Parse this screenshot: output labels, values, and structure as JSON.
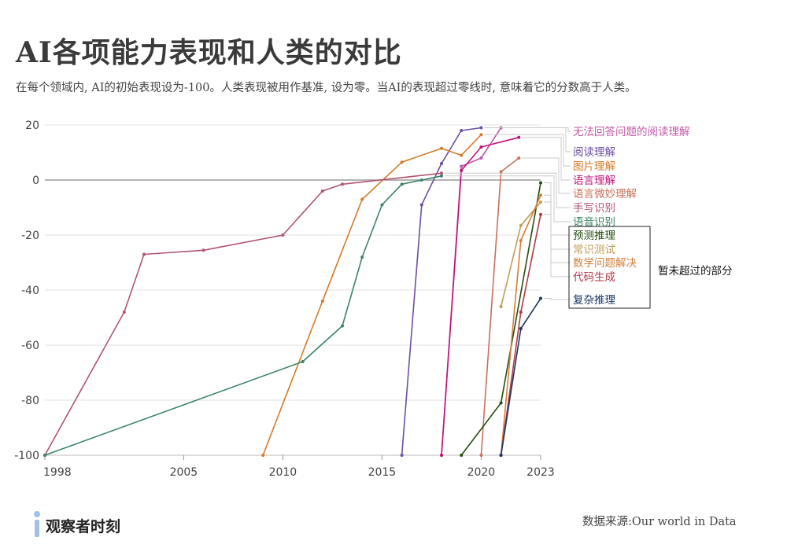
{
  "title": "AI各项能力表现和人类的对比",
  "subtitle": "在每个领域内, AI的初始表现设为-100。人类表现被用作基准, 设为零。当AI的表现超过零线时, 意味着它的分数高于人类。",
  "source": "数据来源:Our world in Data",
  "brand": "观察者时刻",
  "chart_data": {
    "type": "line",
    "title": "AI各项能力表现和人类的对比",
    "xlim": [
      1998,
      2023
    ],
    "ylim": [
      -100,
      20
    ],
    "x_ticks": [
      {
        "value": 1998,
        "label": "1998"
      },
      {
        "value": 2005,
        "label": "2005"
      },
      {
        "value": 2010,
        "label": "2010"
      },
      {
        "value": 2015,
        "label": "2015"
      },
      {
        "value": 2020,
        "label": "2020"
      },
      {
        "value": 2023,
        "label": "2023"
      }
    ],
    "y_ticks": [
      20,
      0,
      -20,
      -40,
      -60,
      -80,
      -100
    ],
    "grid": "horizontal",
    "box_label": "暂未超过的部分",
    "series": [
      {
        "name": "无法回答问题的阅读理解",
        "color": "#c059a8",
        "x": [
          2018,
          2019,
          2020,
          2021
        ],
        "y": [
          -100,
          5,
          8,
          19
        ]
      },
      {
        "name": "阅读理解",
        "color": "#6b4fa3",
        "x": [
          2016,
          2017,
          2018,
          2019,
          2020
        ],
        "y": [
          -100,
          -9,
          6,
          18,
          19
        ]
      },
      {
        "name": "图片理解",
        "color": "#d47a28",
        "x": [
          2009,
          2012,
          2014,
          2016,
          2018,
          2019,
          2020
        ],
        "y": [
          -100,
          -44,
          -7,
          6.5,
          11.5,
          9,
          16.5
        ]
      },
      {
        "name": "语言理解",
        "color": "#c2127a",
        "x": [
          2018,
          2019,
          2020,
          2021.9
        ],
        "y": [
          -100,
          3.5,
          12,
          15.5
        ]
      },
      {
        "name": "语言微妙理解",
        "color": "#c8705a",
        "x": [
          2020,
          2021,
          2021.9
        ],
        "y": [
          -100,
          3,
          8
        ]
      },
      {
        "name": "手写识别",
        "color": "#b25470",
        "x": [
          1998,
          2002,
          2003,
          2006,
          2010,
          2012,
          2013,
          2018
        ],
        "y": [
          -100,
          -48,
          -27,
          -25.5,
          -20,
          -4,
          -1.5,
          2.5
        ]
      },
      {
        "name": "语音识别",
        "color": "#3b8466",
        "x": [
          1998,
          2011,
          2013,
          2014,
          2015,
          2016,
          2017,
          2018
        ],
        "y": [
          -100,
          -66,
          -53,
          -28,
          -9,
          -1.5,
          0,
          1.5
        ]
      },
      {
        "name": "预测推理",
        "color": "#254d10",
        "x": [
          2019,
          2021,
          2023
        ],
        "y": [
          -100,
          -81,
          -1
        ]
      },
      {
        "name": "常识测试",
        "color": "#bf9e55",
        "x": [
          2021,
          2022,
          2023
        ],
        "y": [
          -46,
          -16.5,
          -8
        ]
      },
      {
        "name": "数学问题解决",
        "color": "#d67f3a",
        "x": [
          2021,
          2022,
          2023
        ],
        "y": [
          -100,
          -22,
          -5.5
        ]
      },
      {
        "name": "代码生成",
        "color": "#b03a48",
        "x": [
          2021,
          2022,
          2023
        ],
        "y": [
          -100,
          -48,
          -12.5
        ]
      },
      {
        "name": "复杂推理",
        "color": "#1b3760",
        "x": [
          2021,
          2022,
          2023
        ],
        "y": [
          -100,
          -54,
          -43
        ]
      }
    ]
  }
}
